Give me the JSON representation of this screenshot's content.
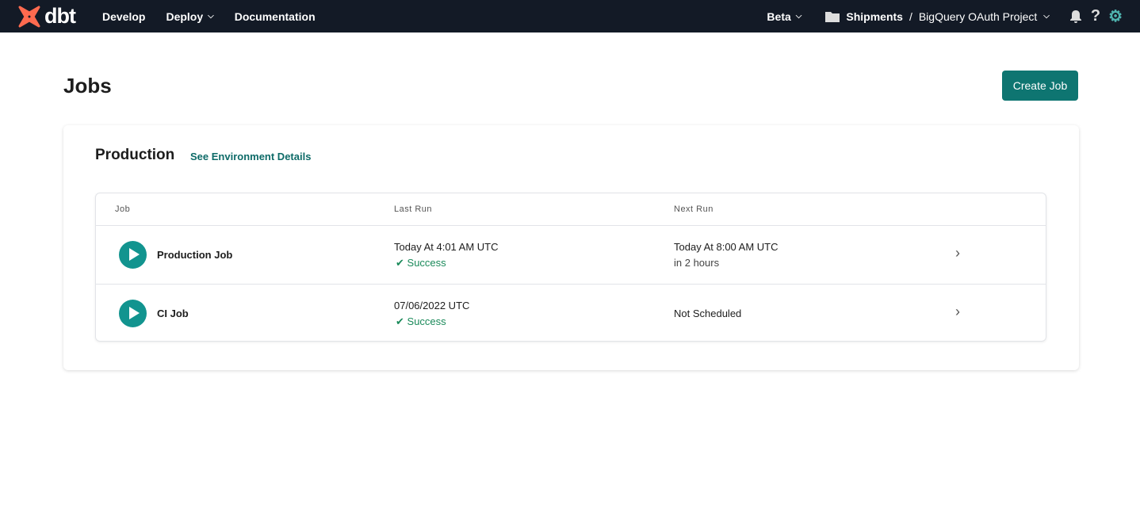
{
  "nav": {
    "logo": "dbt",
    "items": [
      "Develop",
      "Deploy",
      "Documentation"
    ],
    "beta": "Beta",
    "account": "Shipments",
    "separator": "/",
    "project": "BigQuery OAuth Project"
  },
  "page": {
    "title": "Jobs",
    "create_label": "Create Job"
  },
  "environment": {
    "name": "Production",
    "link": "See Environment Details"
  },
  "table": {
    "headers": [
      "Job",
      "Last Run",
      "Next Run"
    ],
    "rows": [
      {
        "name": "Production Job",
        "last_run": "Today At 4:01 AM UTC",
        "status": "Success",
        "next_run": "Today At 8:00 AM UTC",
        "next_sub": "in 2 hours"
      },
      {
        "name": "CI Job",
        "last_run": "07/06/2022 UTC",
        "status": "Success",
        "next_run": "Not Scheduled",
        "next_sub": ""
      }
    ]
  },
  "colors": {
    "nav": "#131a26",
    "accent": "#0e7571",
    "success": "#1a8a5a",
    "logo": "#fe6a4f"
  }
}
